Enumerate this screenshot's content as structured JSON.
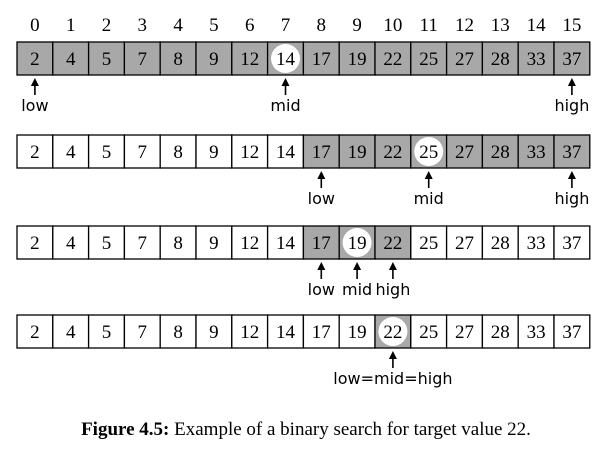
{
  "indices": [
    "0",
    "1",
    "2",
    "3",
    "4",
    "5",
    "6",
    "7",
    "8",
    "9",
    "10",
    "11",
    "12",
    "13",
    "14",
    "15"
  ],
  "values": [
    "2",
    "4",
    "5",
    "7",
    "8",
    "9",
    "12",
    "14",
    "17",
    "19",
    "22",
    "25",
    "27",
    "28",
    "33",
    "37"
  ],
  "colors": {
    "shaded": "#a8a8a8",
    "unshaded": "#ffffff",
    "highlight": "#ffffff",
    "line": "#000000"
  },
  "steps": [
    {
      "shaded": [
        0,
        15
      ],
      "mid": 7,
      "pointers": [
        {
          "at": 0,
          "label": "low"
        },
        {
          "at": 7,
          "label": "mid"
        },
        {
          "at": 15,
          "label": "high"
        }
      ]
    },
    {
      "shaded": [
        8,
        15
      ],
      "mid": 11,
      "pointers": [
        {
          "at": 8,
          "label": "low"
        },
        {
          "at": 11,
          "label": "mid"
        },
        {
          "at": 15,
          "label": "high"
        }
      ]
    },
    {
      "shaded": [
        8,
        10
      ],
      "mid": 9,
      "pointers": [
        {
          "at": 8,
          "label": "low"
        },
        {
          "at": 9,
          "label": "mid"
        },
        {
          "at": 10,
          "label": "high"
        }
      ]
    },
    {
      "shaded": [
        10,
        10
      ],
      "mid": 10,
      "pointers": [
        {
          "at": 10,
          "label": "low=mid=high"
        }
      ]
    }
  ],
  "caption": {
    "label": "Figure 4.5:",
    "text": " Example of a binary search for target value 22."
  }
}
